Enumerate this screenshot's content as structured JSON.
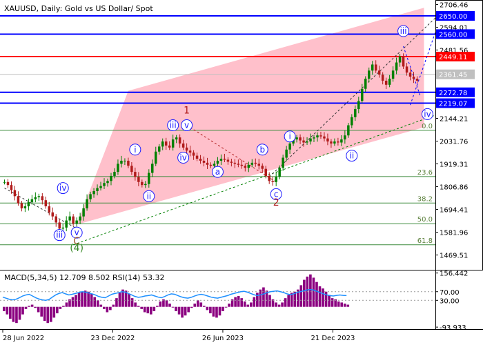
{
  "header": {
    "title": "XAUUSD, Daily:  Gold vs US Dollar/ Spot",
    "macd_label": "MACD(5,34,5) 12.709 8.502 RSI(14) 53.32"
  },
  "colors": {
    "background": "#ffffff",
    "channel_fill": "#ffc0cb",
    "blue_level": "#0000ff",
    "red_level": "#ff0000",
    "gray_level": "#c0c0c0",
    "fib_level": "#3d8b3d",
    "bull_candle": "#008000",
    "bear_candle": "#b01b1b",
    "macd_hist": "#8b0080",
    "rsi_line": "#1e90ff",
    "wave_label": "#1a1aff",
    "wave_big": "#b01b1b",
    "wave_green": "#3a8a2a",
    "wave_brown": "#9c5a2d"
  },
  "price_axis": {
    "ticks": [
      "2706.46",
      "2594.01",
      "2481.56",
      "2144.21",
      "2031.76",
      "1919.31",
      "1806.86",
      "1694.41",
      "1581.96",
      "1469.51"
    ]
  },
  "osc_axis": {
    "ticks": [
      "156.442",
      "70.00",
      "30.00",
      "-93.933"
    ]
  },
  "time_axis": {
    "ticks": [
      "28 Jun 2022",
      "23 Dec 2022",
      "26 Jun 2023",
      "21 Dec 2023"
    ]
  },
  "price_levels": [
    {
      "label": "2650.00",
      "value": 2650.0,
      "color": "#0000ff",
      "kind": "blue"
    },
    {
      "label": "2560.00",
      "value": 2560.0,
      "color": "#0000ff",
      "kind": "blue"
    },
    {
      "label": "2449.11",
      "value": 2449.11,
      "color": "#ff0000",
      "kind": "red"
    },
    {
      "label": "2361.45",
      "value": 2361.45,
      "color": "#c0c0c0",
      "kind": "gray"
    },
    {
      "label": "2272.78",
      "value": 2272.78,
      "color": "#0000ff",
      "kind": "blue"
    },
    {
      "label": "2219.07",
      "value": 2219.07,
      "color": "#0000ff",
      "kind": "blue"
    }
  ],
  "fib_levels": [
    {
      "label": "0.0",
      "value": 2085
    },
    {
      "label": "23.6",
      "value": 1857
    },
    {
      "label": "38.2",
      "value": 1726
    },
    {
      "label": "50.0",
      "value": 1624
    },
    {
      "label": "61.8",
      "value": 1520
    }
  ],
  "wave_labels": [
    {
      "text": "iv",
      "t": 17,
      "p": 1800,
      "style": "circle"
    },
    {
      "text": "iii",
      "t": 16,
      "p": 1568,
      "style": "circle"
    },
    {
      "text": "v",
      "t": 21,
      "p": 1580,
      "style": "circle"
    },
    {
      "text": "C",
      "t": 21,
      "p": 1540,
      "style": "brown"
    },
    {
      "text": "(4)",
      "t": 21,
      "p": 1505,
      "style": "green"
    },
    {
      "text": "i",
      "t": 38,
      "p": 1990,
      "style": "circle"
    },
    {
      "text": "ii",
      "t": 42,
      "p": 1760,
      "style": "circle"
    },
    {
      "text": "iii",
      "t": 49,
      "p": 2110,
      "style": "circle"
    },
    {
      "text": "v",
      "t": 53,
      "p": 2110,
      "style": "circle"
    },
    {
      "text": "1",
      "t": 53,
      "p": 2185,
      "style": "big"
    },
    {
      "text": "iv",
      "t": 52,
      "p": 1950,
      "style": "circle"
    },
    {
      "text": "a",
      "t": 62,
      "p": 1880,
      "style": "circle"
    },
    {
      "text": "b",
      "t": 75,
      "p": 1990,
      "style": "circle"
    },
    {
      "text": "c",
      "t": 79,
      "p": 1770,
      "style": "circle"
    },
    {
      "text": "2",
      "t": 79,
      "p": 1730,
      "style": "big"
    },
    {
      "text": "i",
      "t": 83,
      "p": 2055,
      "style": "circle"
    },
    {
      "text": "ii",
      "t": 101,
      "p": 1960,
      "style": "circle"
    },
    {
      "text": "iii",
      "t": 116,
      "p": 2575,
      "style": "circle"
    },
    {
      "text": "iv",
      "t": 123,
      "p": 2165,
      "style": "circle"
    }
  ],
  "chart_data": {
    "type": "candlestick",
    "symbol": "XAUUSD",
    "timeframe": "Daily",
    "ylim": [
      1400,
      2725
    ],
    "osc_ylim": [
      -100,
      165
    ],
    "series": [
      {
        "name": "price_close_path",
        "values": [
          1830,
          1815,
          1790,
          1760,
          1725,
          1700,
          1710,
          1730,
          1745,
          1755,
          1760,
          1740,
          1710,
          1680,
          1660,
          1630,
          1600,
          1605,
          1640,
          1660,
          1625,
          1640,
          1660,
          1700,
          1745,
          1770,
          1785,
          1800,
          1810,
          1825,
          1835,
          1860,
          1880,
          1920,
          1935,
          1935,
          1910,
          1880,
          1855,
          1830,
          1815,
          1820,
          1875,
          1920,
          1980,
          2005,
          2030,
          2010,
          2000,
          2040,
          2050,
          2020,
          2000,
          1985,
          1975,
          1960,
          1945,
          1935,
          1925,
          1915,
          1910,
          1920,
          1935,
          1945,
          1940,
          1930,
          1925,
          1920,
          1915,
          1910,
          1900,
          1915,
          1925,
          1920,
          1910,
          1895,
          1860,
          1835,
          1830,
          1855,
          1900,
          1950,
          1990,
          2020,
          2040,
          2050,
          2035,
          2025,
          2030,
          2045,
          2050,
          2060,
          2055,
          2045,
          2030,
          2020,
          2030,
          2025,
          2040,
          2060,
          2110,
          2150,
          2190,
          2230,
          2290,
          2340,
          2380,
          2410,
          2380,
          2360,
          2330,
          2310,
          2340,
          2380,
          2420,
          2450,
          2400,
          2370,
          2350,
          2340,
          2330
        ]
      },
      {
        "name": "macd_histogram",
        "values": [
          -20,
          -35,
          -55,
          -70,
          -75,
          -60,
          -35,
          -10,
          5,
          10,
          -5,
          -25,
          -45,
          -65,
          -75,
          -70,
          -50,
          -30,
          -10,
          5,
          20,
          35,
          45,
          55,
          65,
          70,
          75,
          70,
          60,
          45,
          30,
          10,
          -10,
          -25,
          -15,
          10,
          40,
          65,
          80,
          75,
          60,
          40,
          20,
          5,
          -10,
          -25,
          -30,
          -35,
          -20,
          5,
          25,
          35,
          30,
          15,
          0,
          -20,
          -35,
          -50,
          -40,
          -25,
          -5,
          15,
          30,
          20,
          5,
          -15,
          -30,
          -45,
          -50,
          -40,
          -20,
          0,
          15,
          35,
          45,
          50,
          40,
          25,
          10,
          20,
          45,
          65,
          80,
          90,
          75,
          55,
          35,
          20,
          10,
          20,
          40,
          55,
          65,
          70,
          80,
          100,
          125,
          140,
          150,
          135,
          115,
          95,
          85,
          70,
          55,
          40,
          35,
          25,
          20,
          15,
          10
        ]
      },
      {
        "name": "rsi",
        "values": [
          45,
          40,
          35,
          32,
          35,
          42,
          50,
          55,
          58,
          50,
          42,
          36,
          32,
          30,
          34,
          45,
          55,
          62,
          66,
          60,
          55,
          58,
          62,
          66,
          70,
          68,
          64,
          60,
          55,
          48,
          44,
          42,
          50,
          58,
          62,
          65,
          70,
          68,
          62,
          55,
          48,
          44,
          46,
          50,
          52,
          55,
          50,
          45,
          42,
          48,
          55,
          60,
          58,
          52,
          46,
          42,
          40,
          44,
          50,
          55,
          58,
          55,
          50,
          45,
          42,
          40,
          44,
          48,
          52,
          58,
          62,
          66,
          70,
          72,
          68,
          62,
          56,
          52,
          55,
          60,
          66,
          70,
          72,
          74,
          70,
          66,
          60,
          56,
          60,
          66,
          70,
          74,
          78,
          80,
          78,
          72,
          66,
          60,
          55,
          52,
          50,
          53,
          55,
          53,
          52
        ]
      }
    ]
  }
}
